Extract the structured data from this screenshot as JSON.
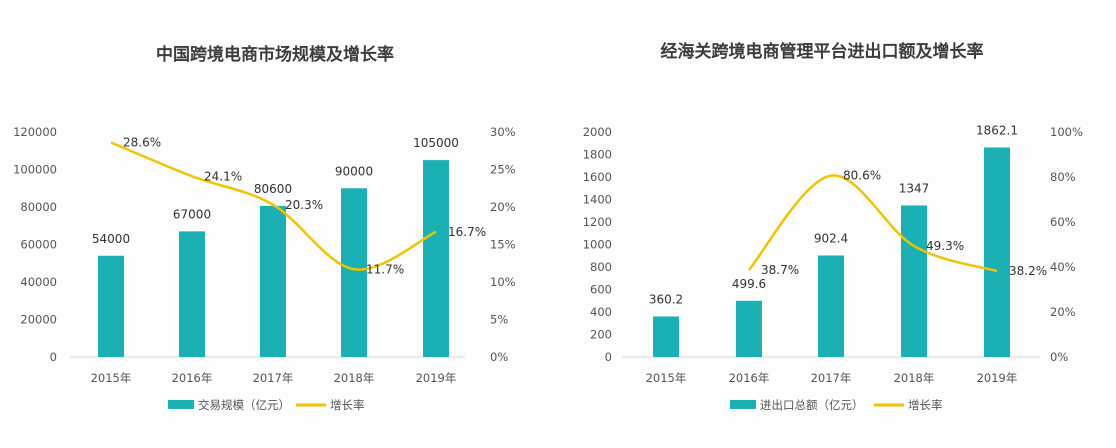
{
  "chart_data": [
    {
      "type": "bar+line",
      "title": "中国跨境电商市场规模及增长率",
      "categories": [
        "2015年",
        "2016年",
        "2017年",
        "2018年",
        "2019年"
      ],
      "series": [
        {
          "name": "交易规模（亿元）",
          "type": "bar",
          "axis": "left",
          "values": [
            54000,
            67000,
            80600,
            90000,
            105000
          ],
          "labels": [
            "54000",
            "67000",
            "80600",
            "90000",
            "105000"
          ]
        },
        {
          "name": "增长率",
          "type": "line",
          "axis": "right",
          "values": [
            28.6,
            24.1,
            20.3,
            11.7,
            16.7
          ],
          "labels": [
            "28.6%",
            "24.1%",
            "20.3%",
            "11.7%",
            "16.7%"
          ]
        }
      ],
      "ylim_left": [
        0,
        120000
      ],
      "yticks_left": [
        "0",
        "20000",
        "40000",
        "60000",
        "80000",
        "100000",
        "120000"
      ],
      "ylim_right": [
        0,
        30
      ],
      "yticks_right": [
        "0%",
        "5%",
        "10%",
        "15%",
        "20%",
        "25%",
        "30%"
      ],
      "legend": "bottom",
      "grid": false,
      "colors": {
        "bar": "#1bb0b4",
        "line": "#f0c400"
      }
    },
    {
      "type": "bar+line",
      "title": "经海关跨境电商管理平台进出口额及增长率",
      "categories": [
        "2015年",
        "2016年",
        "2017年",
        "2018年",
        "2019年"
      ],
      "series": [
        {
          "name": "进出口总额（亿元）",
          "type": "bar",
          "axis": "left",
          "values": [
            360.2,
            499.6,
            902.4,
            1347,
            1862.1
          ],
          "labels": [
            "360.2",
            "499.6",
            "902.4",
            "1347",
            "1862.1"
          ]
        },
        {
          "name": "增长率",
          "type": "line",
          "axis": "right",
          "values": [
            null,
            38.7,
            80.6,
            49.3,
            38.2
          ],
          "labels": [
            "",
            "38.7%",
            "80.6%",
            "49.3%",
            "38.2%"
          ]
        }
      ],
      "ylim_left": [
        0,
        2000
      ],
      "yticks_left": [
        "0",
        "200",
        "400",
        "600",
        "800",
        "1000",
        "1200",
        "1400",
        "1600",
        "1800",
        "2000"
      ],
      "ylim_right": [
        0,
        100
      ],
      "yticks_right": [
        "0%",
        "20%",
        "40%",
        "60%",
        "80%",
        "100%"
      ],
      "legend": "bottom",
      "grid": false,
      "colors": {
        "bar": "#1bb0b4",
        "line": "#f0c400"
      }
    }
  ]
}
